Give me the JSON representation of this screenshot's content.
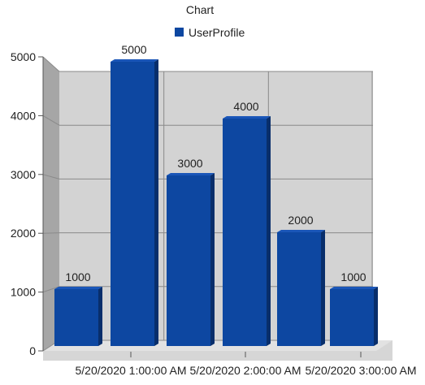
{
  "chart_data": {
    "type": "bar",
    "title": "Chart",
    "xlabel": "",
    "ylabel": "",
    "ylim": [
      0,
      5000
    ],
    "yticks": [
      0,
      1000,
      2000,
      3000,
      4000,
      5000
    ],
    "x_tick_labels": [
      "5/20/2020 1:00:00 AM",
      "5/20/2020 2:00:00 AM",
      "5/20/2020 3:00:00 AM"
    ],
    "grid": true,
    "legend_position": "top",
    "categories": [
      "",
      "",
      "",
      "",
      "",
      ""
    ],
    "series": [
      {
        "name": "UserProfile",
        "color": "#0d47a1",
        "values": [
          1000,
          5000,
          3000,
          4000,
          2000,
          1000
        ]
      }
    ],
    "data_labels": [
      "1000",
      "5000",
      "3000",
      "4000",
      "2000",
      "1000"
    ]
  }
}
